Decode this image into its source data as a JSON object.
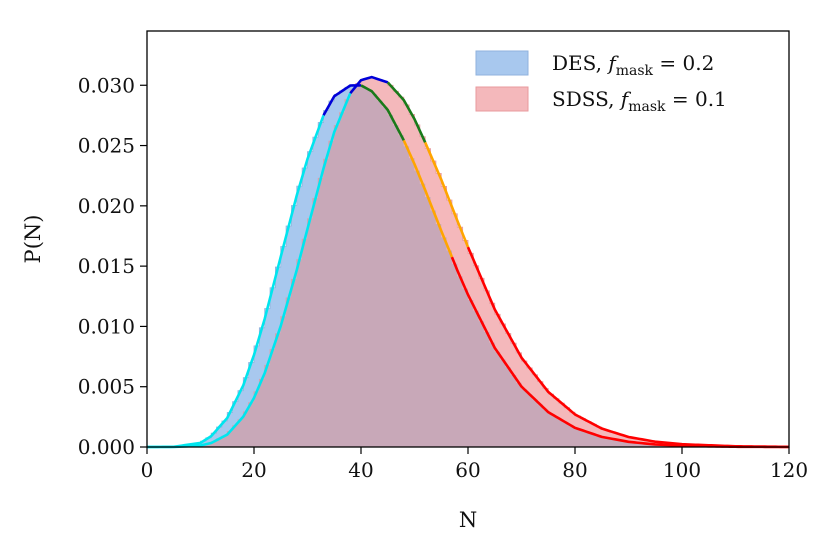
{
  "chart_data": {
    "type": "area",
    "xlabel": "N",
    "ylabel": "P(N)",
    "xlim": [
      0,
      120
    ],
    "ylim": [
      0,
      0.0345
    ],
    "xticks": [
      0,
      20,
      40,
      60,
      80,
      100,
      120
    ],
    "xtick_labels": [
      "0",
      "20",
      "40",
      "60",
      "80",
      "100",
      "120"
    ],
    "yticks": [
      0,
      0.005,
      0.01,
      0.015,
      0.02,
      0.025,
      0.03
    ],
    "ytick_labels": [
      "0.000",
      "0.005",
      "0.010",
      "0.015",
      "0.020",
      "0.025",
      "0.030"
    ],
    "grid": false,
    "legend_position": "top-right",
    "series": [
      {
        "name": "DES, f_mask = 0.2",
        "legend_main": "DES,",
        "legend_f": "f",
        "legend_sub": "mask",
        "legend_eq": " = 0.2",
        "fill_color": "#a8c8ee",
        "edge_color": "#8fb2dd",
        "mean": 40,
        "peak": 0.03,
        "x": [
          0,
          5,
          10,
          12,
          15,
          18,
          20,
          22,
          25,
          28,
          30,
          33,
          35,
          38,
          40,
          42,
          45,
          48,
          50,
          52,
          55,
          58,
          60,
          65,
          70,
          75,
          80,
          85,
          90,
          95,
          100,
          110,
          120
        ],
        "y": [
          0,
          2e-05,
          0.00034,
          0.0009,
          0.00241,
          0.00512,
          0.00764,
          0.01063,
          0.01578,
          0.02088,
          0.02389,
          0.02751,
          0.02909,
          0.02998,
          0.02999,
          0.02951,
          0.02795,
          0.02543,
          0.02346,
          0.0213,
          0.01793,
          0.01466,
          0.01263,
          0.00822,
          0.00501,
          0.00289,
          0.00159,
          0.00084,
          0.00043,
          0.00021,
          0.0001,
          2e-05,
          0
        ]
      },
      {
        "name": "SDSS, f_mask = 0.1",
        "legend_main": "SDSS,",
        "legend_f": "f",
        "legend_sub": "mask",
        "legend_eq": " = 0.1",
        "fill_color": "#f4b8bb",
        "edge_color": "#e89a9e",
        "mean": 45,
        "peak": 0.0304,
        "x": [
          0,
          5,
          10,
          12,
          15,
          18,
          20,
          22,
          25,
          28,
          30,
          33,
          35,
          38,
          40,
          42,
          45,
          48,
          50,
          52,
          55,
          58,
          60,
          65,
          70,
          75,
          80,
          85,
          90,
          95,
          100,
          110,
          120
        ],
        "y": [
          0,
          0,
          0.00012,
          0.00033,
          0.00103,
          0.00252,
          0.00407,
          0.00613,
          0.01004,
          0.01469,
          0.01809,
          0.02312,
          0.02612,
          0.02934,
          0.03042,
          0.03068,
          0.03024,
          0.02877,
          0.02719,
          0.02526,
          0.02218,
          0.01878,
          0.01658,
          0.01141,
          0.00741,
          0.00457,
          0.0027,
          0.00153,
          0.00083,
          0.00044,
          0.00023,
          6e-05,
          1e-05
        ]
      }
    ],
    "curve_segments": [
      {
        "series": 0,
        "from": 0,
        "to": 33,
        "color": "#00e5ee"
      },
      {
        "series": 0,
        "from": 33,
        "to": 40,
        "color": "#0000d8"
      },
      {
        "series": 0,
        "from": 40,
        "to": 48,
        "color": "#1a7a1a"
      },
      {
        "series": 0,
        "from": 48,
        "to": 57,
        "color": "#ffa500"
      },
      {
        "series": 0,
        "from": 57,
        "to": 120,
        "color": "#ff0000"
      },
      {
        "series": 1,
        "from": 0,
        "to": 38,
        "color": "#00e5ee"
      },
      {
        "series": 1,
        "from": 38,
        "to": 45,
        "color": "#0000d8"
      },
      {
        "series": 1,
        "from": 45,
        "to": 52,
        "color": "#1a7a1a"
      },
      {
        "series": 1,
        "from": 52,
        "to": 60,
        "color": "#ffa500"
      },
      {
        "series": 1,
        "from": 60,
        "to": 120,
        "color": "#ff0000"
      }
    ],
    "overlap_color": "#c8a8b8"
  }
}
